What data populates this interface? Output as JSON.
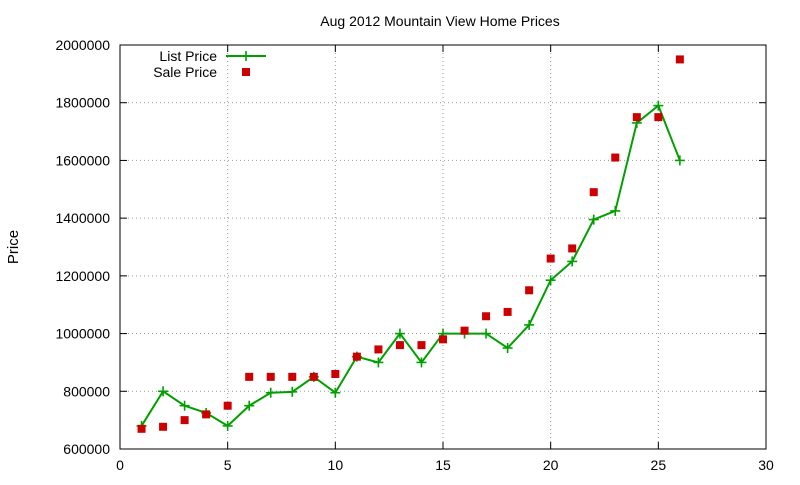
{
  "chart_data": {
    "type": "line",
    "title": "Aug 2012 Mountain View Home Prices",
    "xlabel": "",
    "ylabel": "Price",
    "xlim": [
      0,
      30
    ],
    "ylim": [
      600000,
      2000000
    ],
    "xticks": [
      0,
      5,
      10,
      15,
      20,
      25,
      30
    ],
    "yticks": [
      600000,
      800000,
      1000000,
      1200000,
      1400000,
      1600000,
      1800000,
      2000000
    ],
    "grid": true,
    "legend": "top-left",
    "series": [
      {
        "name": "List Price",
        "kind": "line-with-plus-markers",
        "color": "#00a000",
        "x": [
          1,
          2,
          3,
          4,
          5,
          6,
          7,
          8,
          9,
          10,
          11,
          12,
          13,
          14,
          15,
          16,
          17,
          18,
          19,
          20,
          21,
          22,
          23,
          24,
          25,
          26
        ],
        "values": [
          680000,
          800000,
          750000,
          725000,
          680000,
          750000,
          795000,
          798000,
          850000,
          795000,
          920000,
          900000,
          1000000,
          900000,
          1000000,
          1000000,
          1000000,
          950000,
          1030000,
          1185000,
          1250000,
          1395000,
          1425000,
          1730000,
          1790000,
          1600000
        ]
      },
      {
        "name": "Sale Price",
        "kind": "square-markers",
        "color": "#cc0000",
        "x": [
          1,
          2,
          3,
          4,
          5,
          6,
          7,
          8,
          9,
          10,
          11,
          12,
          13,
          14,
          15,
          16,
          17,
          18,
          19,
          20,
          21,
          22,
          23,
          24,
          25,
          26
        ],
        "values": [
          670000,
          677000,
          700000,
          720000,
          750000,
          850000,
          850000,
          850000,
          850000,
          860000,
          920000,
          945000,
          960000,
          960000,
          980000,
          1010000,
          1060000,
          1075000,
          1150000,
          1260000,
          1295000,
          1490000,
          1610000,
          1750000,
          1750000,
          1950000
        ]
      }
    ]
  }
}
